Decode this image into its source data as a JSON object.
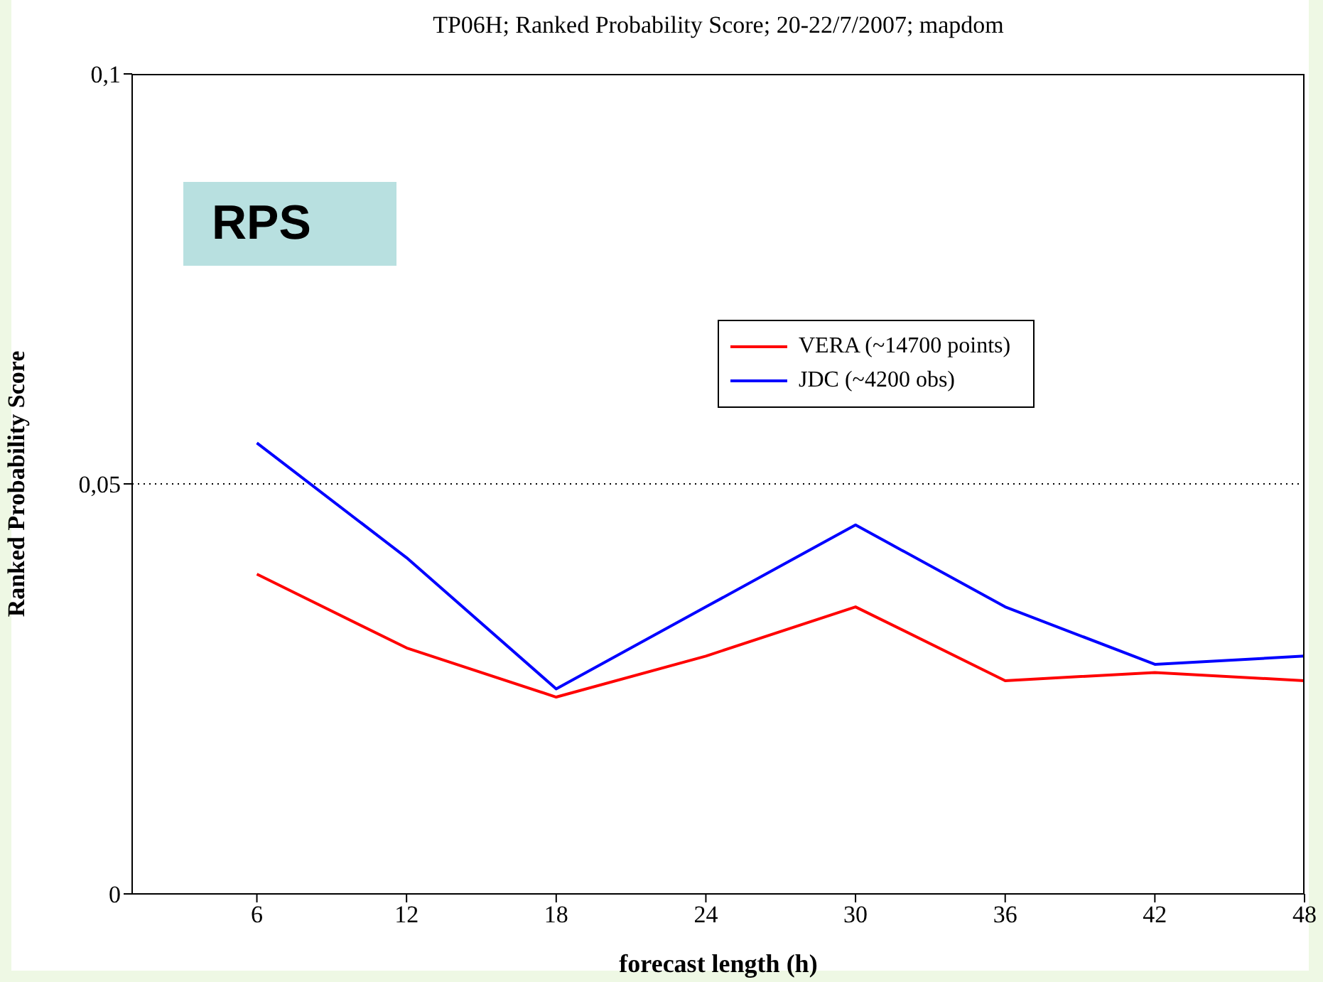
{
  "chart_data": {
    "type": "line",
    "title": "TP06H; Ranked Probability Score; 20-22/7/2007; mapdom",
    "xlabel": "forecast length (h)",
    "ylabel": "Ranked Probability Score",
    "annotations": [
      "RPS"
    ],
    "x": [
      6,
      12,
      18,
      24,
      30,
      36,
      42,
      48
    ],
    "series": [
      {
        "name": "VERA (~14700 points)",
        "color": "#ff0000",
        "values": [
          0.039,
          0.03,
          0.024,
          0.029,
          0.035,
          0.026,
          0.027,
          0.026
        ]
      },
      {
        "name": "JDC (~4200 obs)",
        "color": "#0000ff",
        "values": [
          0.055,
          0.041,
          0.025,
          0.035,
          0.045,
          0.035,
          0.028,
          0.029
        ]
      }
    ],
    "xlim": [
      1,
      48
    ],
    "xticks": [
      6,
      12,
      18,
      24,
      30,
      36,
      42,
      48
    ],
    "ylim": [
      0,
      0.1
    ],
    "yticks": [
      {
        "value": 0,
        "label": "0"
      },
      {
        "value": 0.05,
        "label": "0,05"
      },
      {
        "value": 0.1,
        "label": "0,1"
      }
    ],
    "ref_lines": [
      {
        "axis": "y",
        "value": 0.05,
        "line_style": "dotted",
        "color": "#000000"
      }
    ],
    "grid": false,
    "legend": "top right",
    "marker": "none",
    "line_style": "solid"
  }
}
